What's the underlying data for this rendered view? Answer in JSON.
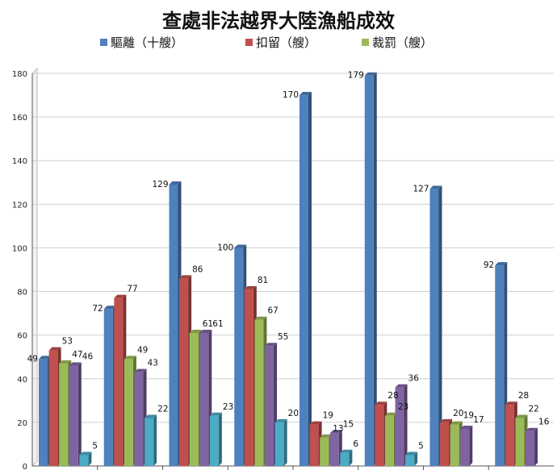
{
  "chart_data": {
    "type": "bar",
    "title": "查處非法越界大陸漁船成效",
    "ylim": [
      0,
      180
    ],
    "yticks": [
      0,
      20,
      40,
      60,
      80,
      100,
      120,
      140,
      160,
      180
    ],
    "grid": true,
    "legend_position": "top",
    "categories": [
      "",
      "",
      "",
      "",
      "",
      "",
      "",
      ""
    ],
    "series": [
      {
        "name": "驅離（十艘）",
        "color": "#4f81bd",
        "values": [
          49,
          72,
          129,
          100,
          170,
          179,
          127,
          92
        ]
      },
      {
        "name": "扣留（艘）",
        "color": "#c0504d",
        "values": [
          53,
          77,
          86,
          81,
          19,
          28,
          20,
          28
        ]
      },
      {
        "name": "裁罰（艘）",
        "color": "#9bbb59",
        "values": [
          47,
          49,
          61,
          67,
          13,
          23,
          19,
          22
        ]
      },
      {
        "name": "",
        "color": "#8064a2",
        "values": [
          46,
          43,
          61,
          55,
          15,
          36,
          17,
          16
        ]
      },
      {
        "name": "",
        "color": "#4bacc6",
        "values": [
          5,
          22,
          23,
          20,
          6,
          5,
          null,
          null
        ]
      }
    ]
  }
}
